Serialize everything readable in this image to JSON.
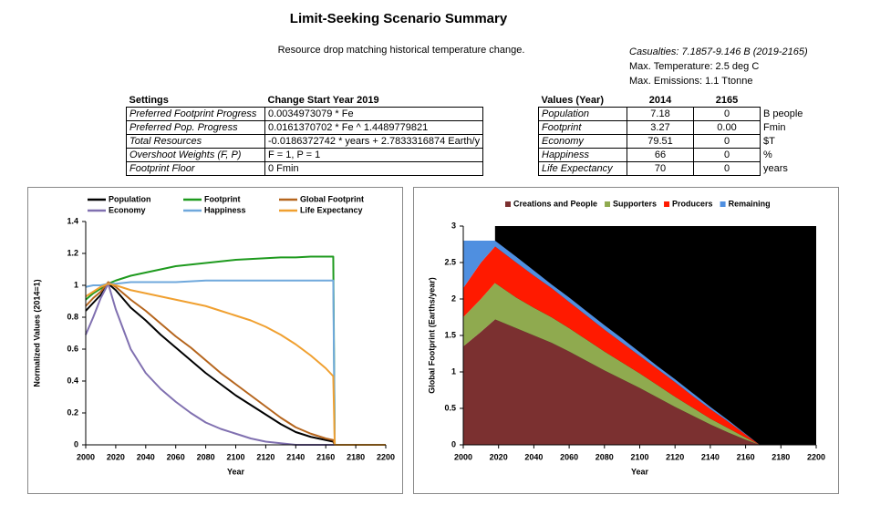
{
  "header": {
    "title": "Limit-Seeking Scenario Summary",
    "subtitle": "Resource drop matching historical temperature change.",
    "notes": [
      "Casualties: 7.1857-9.146 B (2019-2165)",
      "Max. Temperature: 2.5 deg C",
      "Max. Emissions: 1.1 Ttonne"
    ]
  },
  "settings_table": {
    "columns": [
      "Settings",
      "Change Start Year 2019"
    ],
    "rows": [
      [
        "Preferred Footprint Progress",
        "0.0034973079 * Fe"
      ],
      [
        "Preferred Pop. Progress",
        "0.0161370702 * Fe ^ 1.4489779821"
      ],
      [
        "Total Resources",
        "-0.0186372742 * years + 2.7833316874 Earth/y"
      ],
      [
        "Overshoot Weights (F, P)",
        "F = 1, P = 1"
      ],
      [
        "Footprint Floor",
        "0 Fmin"
      ]
    ]
  },
  "values_table": {
    "columns": [
      "Values (Year)",
      "2014",
      "2165"
    ],
    "rows": [
      [
        "Population",
        "7.18",
        "0",
        "B people"
      ],
      [
        "Footprint",
        "3.27",
        "0.00",
        "Fmin"
      ],
      [
        "Economy",
        "79.51",
        "0",
        "$T"
      ],
      [
        "Happiness",
        "66",
        "0",
        "%"
      ],
      [
        "Life Expectancy",
        "70",
        "0",
        "years"
      ]
    ]
  },
  "chart_data": [
    {
      "type": "line",
      "x_label": "Year",
      "y_label": "Normalized Values (2014=1)",
      "x": [
        2000,
        2005,
        2010,
        2015,
        2020,
        2030,
        2040,
        2050,
        2060,
        2070,
        2080,
        2090,
        2100,
        2110,
        2120,
        2130,
        2140,
        2150,
        2160,
        2165,
        2166,
        2200
      ],
      "xlim": [
        2000,
        2200
      ],
      "xticks": [
        2000,
        2020,
        2040,
        2060,
        2080,
        2100,
        2120,
        2140,
        2160,
        2180,
        2200
      ],
      "ylim": [
        0,
        1.4
      ],
      "yticks": [
        0,
        0.2,
        0.4,
        0.6,
        0.8,
        1,
        1.2,
        1.4
      ],
      "legend": "top",
      "series": [
        {
          "name": "Population",
          "color": "#000000",
          "values": [
            0.84,
            0.89,
            0.94,
            1.01,
            0.97,
            0.86,
            0.78,
            0.69,
            0.61,
            0.53,
            0.45,
            0.38,
            0.31,
            0.25,
            0.19,
            0.13,
            0.08,
            0.05,
            0.03,
            0.02,
            0,
            0
          ]
        },
        {
          "name": "Footprint",
          "color": "#1e9a1e",
          "values": [
            0.91,
            0.95,
            0.98,
            1.01,
            1.03,
            1.06,
            1.08,
            1.1,
            1.12,
            1.13,
            1.14,
            1.15,
            1.16,
            1.165,
            1.17,
            1.175,
            1.175,
            1.18,
            1.18,
            1.18,
            0,
            0
          ]
        },
        {
          "name": "Global Footprint",
          "color": "#b5651d",
          "values": [
            0.87,
            0.92,
            0.96,
            1.02,
            0.99,
            0.91,
            0.84,
            0.76,
            0.68,
            0.61,
            0.53,
            0.45,
            0.38,
            0.31,
            0.24,
            0.17,
            0.11,
            0.07,
            0.04,
            0.03,
            0,
            0
          ]
        },
        {
          "name": "Economy",
          "color": "#8070b0",
          "values": [
            0.69,
            0.8,
            0.92,
            1.01,
            0.85,
            0.6,
            0.45,
            0.35,
            0.27,
            0.2,
            0.14,
            0.1,
            0.07,
            0.04,
            0.02,
            0.01,
            0,
            0,
            0,
            0,
            0,
            0
          ]
        },
        {
          "name": "Happiness",
          "color": "#6fa8dc",
          "values": [
            0.99,
            1,
            1,
            1.01,
            1.01,
            1.02,
            1.02,
            1.02,
            1.02,
            1.025,
            1.03,
            1.03,
            1.03,
            1.03,
            1.03,
            1.03,
            1.03,
            1.03,
            1.03,
            1.03,
            0,
            0
          ]
        },
        {
          "name": "Life Expectancy",
          "color": "#f0a030",
          "values": [
            0.93,
            0.96,
            0.99,
            1.01,
            1.0,
            0.97,
            0.95,
            0.93,
            0.91,
            0.89,
            0.87,
            0.84,
            0.81,
            0.78,
            0.74,
            0.69,
            0.63,
            0.56,
            0.48,
            0.43,
            0,
            0
          ]
        }
      ]
    },
    {
      "type": "area",
      "stacked": true,
      "plot_background": "#000000",
      "x_label": "Year",
      "y_label": "Global Footprint (Earths/year)",
      "x": [
        2000,
        2010,
        2018,
        2030,
        2040,
        2050,
        2060,
        2070,
        2080,
        2090,
        2100,
        2110,
        2120,
        2130,
        2140,
        2150,
        2160,
        2168
      ],
      "xlim": [
        2000,
        2200
      ],
      "xticks": [
        2000,
        2020,
        2040,
        2060,
        2080,
        2100,
        2120,
        2140,
        2160,
        2180,
        2200
      ],
      "ylim": [
        0,
        3
      ],
      "yticks": [
        0,
        0.5,
        1,
        1.5,
        2,
        2.5,
        3
      ],
      "legend": "top",
      "series": [
        {
          "name": "Creations and People",
          "color": "#7b3030",
          "values": [
            1.35,
            1.55,
            1.72,
            1.6,
            1.5,
            1.4,
            1.28,
            1.15,
            1.02,
            0.9,
            0.78,
            0.65,
            0.52,
            0.4,
            0.28,
            0.17,
            0.07,
            0
          ]
        },
        {
          "name": "Supporters",
          "color": "#8faa4f",
          "values": [
            0.4,
            0.45,
            0.5,
            0.42,
            0.38,
            0.35,
            0.32,
            0.29,
            0.26,
            0.23,
            0.2,
            0.17,
            0.14,
            0.11,
            0.08,
            0.06,
            0.03,
            0
          ]
        },
        {
          "name": "Producers",
          "color": "#ff1a00",
          "values": [
            0.4,
            0.5,
            0.5,
            0.48,
            0.44,
            0.4,
            0.36,
            0.33,
            0.3,
            0.27,
            0.24,
            0.22,
            0.2,
            0.16,
            0.13,
            0.09,
            0.04,
            0
          ]
        },
        {
          "name": "Remaining",
          "color": "#4f8fe0",
          "values": [
            0.65,
            0.3,
            0.08,
            0.08,
            0.07,
            0.05,
            0.06,
            0.06,
            0.06,
            0.06,
            0.05,
            0.04,
            0.04,
            0.04,
            0.03,
            0.02,
            0.01,
            0
          ]
        }
      ]
    }
  ]
}
